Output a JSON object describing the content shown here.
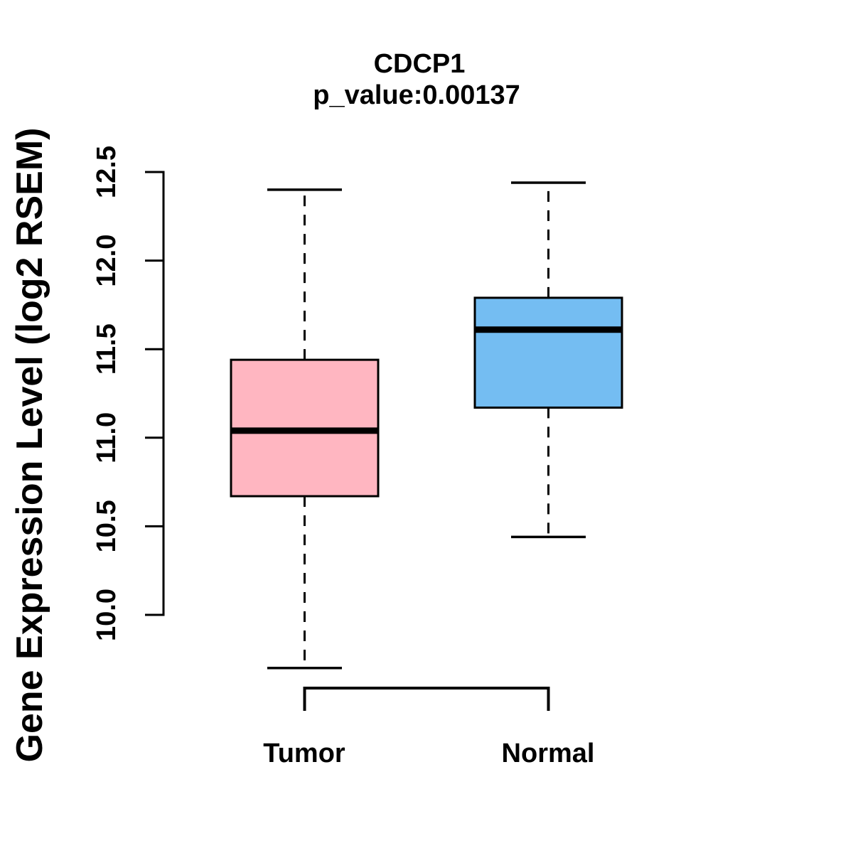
{
  "figure": {
    "background_color": "#FFFFFF",
    "text_color": "#000000"
  },
  "chart_data": {
    "type": "boxplot",
    "title": "CDCP1",
    "subtitle": "p_value:0.00137",
    "xlabel": "",
    "ylabel": "Gene Expression Level (log2 RSEM)",
    "categories": [
      "Tumor",
      "Normal"
    ],
    "y_ticks": [
      10.0,
      10.5,
      11.0,
      11.5,
      12.0,
      12.5
    ],
    "y_tick_labels": [
      "10.0",
      "10.5",
      "11.0",
      "11.5",
      "12.0",
      "12.5"
    ],
    "ylim": [
      9.55,
      12.55
    ],
    "grid": false,
    "legend": "none",
    "series": [
      {
        "name": "Tumor",
        "fill_color": "#FFB6C1",
        "stroke_color": "#000000",
        "stats": {
          "lower_whisker": 9.7,
          "q1": 10.67,
          "median": 11.04,
          "q3": 11.44,
          "upper_whisker": 12.4
        }
      },
      {
        "name": "Normal",
        "fill_color": "#74BDF2",
        "stroke_color": "#000000",
        "stats": {
          "lower_whisker": 10.44,
          "q1": 11.17,
          "median": 11.61,
          "q3": 11.79,
          "upper_whisker": 12.44
        }
      }
    ],
    "annotations": {
      "comparison_bracket": {
        "from": "Tumor",
        "to": "Normal"
      }
    }
  }
}
